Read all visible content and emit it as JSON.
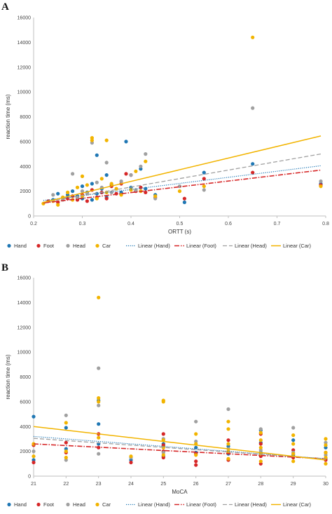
{
  "colors": {
    "Hand": "#1f77b4",
    "Foot": "#d62728",
    "Head": "#a0a0a0",
    "Car": "#f2b400"
  },
  "chart_data": [
    {
      "type": "scatter",
      "panel_label": "A",
      "xlabel": "ORTT (s)",
      "ylabel": "reaction time (ms)",
      "xlim": [
        0.2,
        0.8
      ],
      "ylim": [
        0,
        16000
      ],
      "xticks": [
        "0.2",
        "0.3",
        "0.4",
        "0.5",
        "0.6",
        "0.7",
        "0.8"
      ],
      "yticks": [
        "0",
        "2000",
        "4000",
        "6000",
        "8000",
        "10000",
        "12000",
        "14000",
        "16000"
      ],
      "grid": false,
      "legend_position": "bottom",
      "legend": [
        "Hand",
        "Foot",
        "Head",
        "Car",
        "Linear (Hand)",
        "Linear (Foot)",
        "Linear (Head)",
        "Linear (Car)"
      ],
      "series": [
        {
          "name": "Hand",
          "points": [
            [
              0.24,
              1300
            ],
            [
              0.25,
              1800
            ],
            [
              0.26,
              1500
            ],
            [
              0.27,
              1700
            ],
            [
              0.28,
              2000
            ],
            [
              0.29,
              1600
            ],
            [
              0.3,
              2400
            ],
            [
              0.3,
              1400
            ],
            [
              0.31,
              1900
            ],
            [
              0.32,
              2600
            ],
            [
              0.32,
              1300
            ],
            [
              0.33,
              4900
            ],
            [
              0.33,
              1800
            ],
            [
              0.34,
              2200
            ],
            [
              0.35,
              3300
            ],
            [
              0.35,
              1500
            ],
            [
              0.36,
              2500
            ],
            [
              0.38,
              1900
            ],
            [
              0.39,
              6000
            ],
            [
              0.4,
              2300
            ],
            [
              0.42,
              3800
            ],
            [
              0.43,
              2200
            ],
            [
              0.45,
              1700
            ],
            [
              0.51,
              1100
            ],
            [
              0.55,
              3500
            ],
            [
              0.65,
              4200
            ],
            [
              0.79,
              2600
            ]
          ]
        },
        {
          "name": "Foot",
          "points": [
            [
              0.23,
              1200
            ],
            [
              0.25,
              1100
            ],
            [
              0.27,
              1400
            ],
            [
              0.28,
              1600
            ],
            [
              0.29,
              1300
            ],
            [
              0.3,
              1700
            ],
            [
              0.31,
              1200
            ],
            [
              0.32,
              2100
            ],
            [
              0.33,
              1500
            ],
            [
              0.34,
              1900
            ],
            [
              0.35,
              1400
            ],
            [
              0.36,
              2400
            ],
            [
              0.37,
              1800
            ],
            [
              0.38,
              2600
            ],
            [
              0.39,
              3400
            ],
            [
              0.4,
              3300
            ],
            [
              0.41,
              2000
            ],
            [
              0.42,
              2300
            ],
            [
              0.43,
              1900
            ],
            [
              0.45,
              1500
            ],
            [
              0.51,
              1400
            ],
            [
              0.55,
              3000
            ],
            [
              0.65,
              3500
            ],
            [
              0.79,
              2500
            ]
          ]
        },
        {
          "name": "Head",
          "points": [
            [
              0.24,
              1700
            ],
            [
              0.26,
              1300
            ],
            [
              0.28,
              3400
            ],
            [
              0.29,
              1500
            ],
            [
              0.3,
              2000
            ],
            [
              0.31,
              1800
            ],
            [
              0.32,
              5900
            ],
            [
              0.33,
              2700
            ],
            [
              0.34,
              2300
            ],
            [
              0.35,
              4300
            ],
            [
              0.36,
              1900
            ],
            [
              0.38,
              2800
            ],
            [
              0.4,
              3300
            ],
            [
              0.41,
              2100
            ],
            [
              0.42,
              4000
            ],
            [
              0.43,
              5000
            ],
            [
              0.45,
              1400
            ],
            [
              0.5,
              2400
            ],
            [
              0.55,
              2100
            ],
            [
              0.65,
              8700
            ],
            [
              0.79,
              2800
            ]
          ]
        },
        {
          "name": "Car",
          "points": [
            [
              0.22,
              1000
            ],
            [
              0.24,
              1200
            ],
            [
              0.25,
              900
            ],
            [
              0.26,
              1500
            ],
            [
              0.27,
              1900
            ],
            [
              0.28,
              1300
            ],
            [
              0.29,
              2300
            ],
            [
              0.3,
              1600
            ],
            [
              0.3,
              3200
            ],
            [
              0.31,
              2500
            ],
            [
              0.32,
              6300
            ],
            [
              0.32,
              6100
            ],
            [
              0.33,
              1400
            ],
            [
              0.34,
              3000
            ],
            [
              0.35,
              6100
            ],
            [
              0.35,
              1900
            ],
            [
              0.36,
              2600
            ],
            [
              0.37,
              2200
            ],
            [
              0.38,
              1700
            ],
            [
              0.4,
              2100
            ],
            [
              0.41,
              3600
            ],
            [
              0.42,
              2000
            ],
            [
              0.43,
              4400
            ],
            [
              0.45,
              1600
            ],
            [
              0.5,
              2000
            ],
            [
              0.55,
              2400
            ],
            [
              0.65,
              14400
            ],
            [
              0.79,
              2400
            ]
          ]
        }
      ],
      "trendlines": [
        {
          "name": "Linear (Hand)",
          "x": [
            0.22,
            0.79
          ],
          "y": [
            1250,
            4050
          ]
        },
        {
          "name": "Linear (Foot)",
          "x": [
            0.22,
            0.79
          ],
          "y": [
            1050,
            3700
          ]
        },
        {
          "name": "Linear (Head)",
          "x": [
            0.22,
            0.79
          ],
          "y": [
            1100,
            5000
          ]
        },
        {
          "name": "Linear (Car)",
          "x": [
            0.22,
            0.79
          ],
          "y": [
            1100,
            6450
          ]
        }
      ]
    },
    {
      "type": "scatter",
      "panel_label": "B",
      "xlabel": "MoCA",
      "ylabel": "reaction time (ms)",
      "xlim": [
        21,
        30
      ],
      "ylim": [
        0,
        16000
      ],
      "xticks": [
        "21",
        "22",
        "23",
        "24",
        "25",
        "26",
        "27",
        "28",
        "29",
        "30"
      ],
      "yticks": [
        "0",
        "2000",
        "4000",
        "6000",
        "8000",
        "10000",
        "12000",
        "14000",
        "16000"
      ],
      "grid": false,
      "legend_position": "bottom",
      "legend": [
        "Hand",
        "Foot",
        "Head",
        "Car",
        "Linear (Hand)",
        "Linear (Foot)",
        "Linear (Head)",
        "Linear (Car)"
      ],
      "series": [
        {
          "name": "Hand",
          "points": [
            [
              21,
              4800
            ],
            [
              21,
              1300
            ],
            [
              22,
              3900
            ],
            [
              22,
              2200
            ],
            [
              23,
              4200
            ],
            [
              23,
              6100
            ],
            [
              23,
              2600
            ],
            [
              24,
              1300
            ],
            [
              25,
              2600
            ],
            [
              25,
              1600
            ],
            [
              26,
              2300
            ],
            [
              26,
              1900
            ],
            [
              27,
              2400
            ],
            [
              27,
              1800
            ],
            [
              28,
              3700
            ],
            [
              28,
              2700
            ],
            [
              28,
              1900
            ],
            [
              29,
              2900
            ],
            [
              29,
              1700
            ],
            [
              30,
              2300
            ],
            [
              30,
              1400
            ]
          ]
        },
        {
          "name": "Foot",
          "points": [
            [
              21,
              1100
            ],
            [
              21,
              2500
            ],
            [
              22,
              1900
            ],
            [
              22,
              2700
            ],
            [
              23,
              3400
            ],
            [
              23,
              2300
            ],
            [
              24,
              1100
            ],
            [
              25,
              3400
            ],
            [
              25,
              2500
            ],
            [
              25,
              2000
            ],
            [
              25,
              1500
            ],
            [
              26,
              1800
            ],
            [
              26,
              1200
            ],
            [
              26,
              900
            ],
            [
              27,
              2900
            ],
            [
              27,
              1900
            ],
            [
              27,
              1300
            ],
            [
              28,
              3400
            ],
            [
              28,
              2600
            ],
            [
              28,
              1600
            ],
            [
              28,
              1000
            ],
            [
              29,
              2100
            ],
            [
              29,
              1500
            ],
            [
              30,
              1900
            ],
            [
              30,
              1300
            ]
          ]
        },
        {
          "name": "Head",
          "points": [
            [
              21,
              2000
            ],
            [
              22,
              4900
            ],
            [
              22,
              1300
            ],
            [
              23,
              8700
            ],
            [
              23,
              5700
            ],
            [
              23,
              1800
            ],
            [
              24,
              1500
            ],
            [
              25,
              3000
            ],
            [
              25,
              1900
            ],
            [
              26,
              4400
            ],
            [
              26,
              2800
            ],
            [
              27,
              5400
            ],
            [
              27,
              2200
            ],
            [
              28,
              3800
            ],
            [
              28,
              2100
            ],
            [
              29,
              3900
            ],
            [
              29,
              1900
            ],
            [
              30,
              2700
            ],
            [
              30,
              1700
            ]
          ]
        },
        {
          "name": "Car",
          "points": [
            [
              21,
              2600
            ],
            [
              21,
              1600
            ],
            [
              22,
              4300
            ],
            [
              22,
              2000
            ],
            [
              22,
              1500
            ],
            [
              23,
              14400
            ],
            [
              23,
              6300
            ],
            [
              23,
              6000
            ],
            [
              23,
              3100
            ],
            [
              24,
              1600
            ],
            [
              25,
              6100
            ],
            [
              25,
              6000
            ],
            [
              25,
              2900
            ],
            [
              25,
              2300
            ],
            [
              25,
              1700
            ],
            [
              26,
              3400
            ],
            [
              26,
              2600
            ],
            [
              26,
              1700
            ],
            [
              27,
              4400
            ],
            [
              27,
              3800
            ],
            [
              27,
              2600
            ],
            [
              27,
              2000
            ],
            [
              27,
              1400
            ],
            [
              28,
              3500
            ],
            [
              28,
              2900
            ],
            [
              28,
              2300
            ],
            [
              28,
              1800
            ],
            [
              28,
              1200
            ],
            [
              29,
              3300
            ],
            [
              29,
              2600
            ],
            [
              29,
              1800
            ],
            [
              29,
              1200
            ],
            [
              30,
              3000
            ],
            [
              30,
              2500
            ],
            [
              30,
              1900
            ],
            [
              30,
              1500
            ],
            [
              30,
              1000
            ]
          ]
        }
      ],
      "trendlines": [
        {
          "name": "Linear (Hand)",
          "x": [
            21,
            30
          ],
          "y": [
            3200,
            1400
          ]
        },
        {
          "name": "Linear (Foot)",
          "x": [
            21,
            30
          ],
          "y": [
            2600,
            1400
          ]
        },
        {
          "name": "Linear (Head)",
          "x": [
            21,
            30
          ],
          "y": [
            3050,
            1400
          ]
        },
        {
          "name": "Linear (Car)",
          "x": [
            21,
            30
          ],
          "y": [
            4000,
            1300
          ]
        }
      ]
    }
  ]
}
